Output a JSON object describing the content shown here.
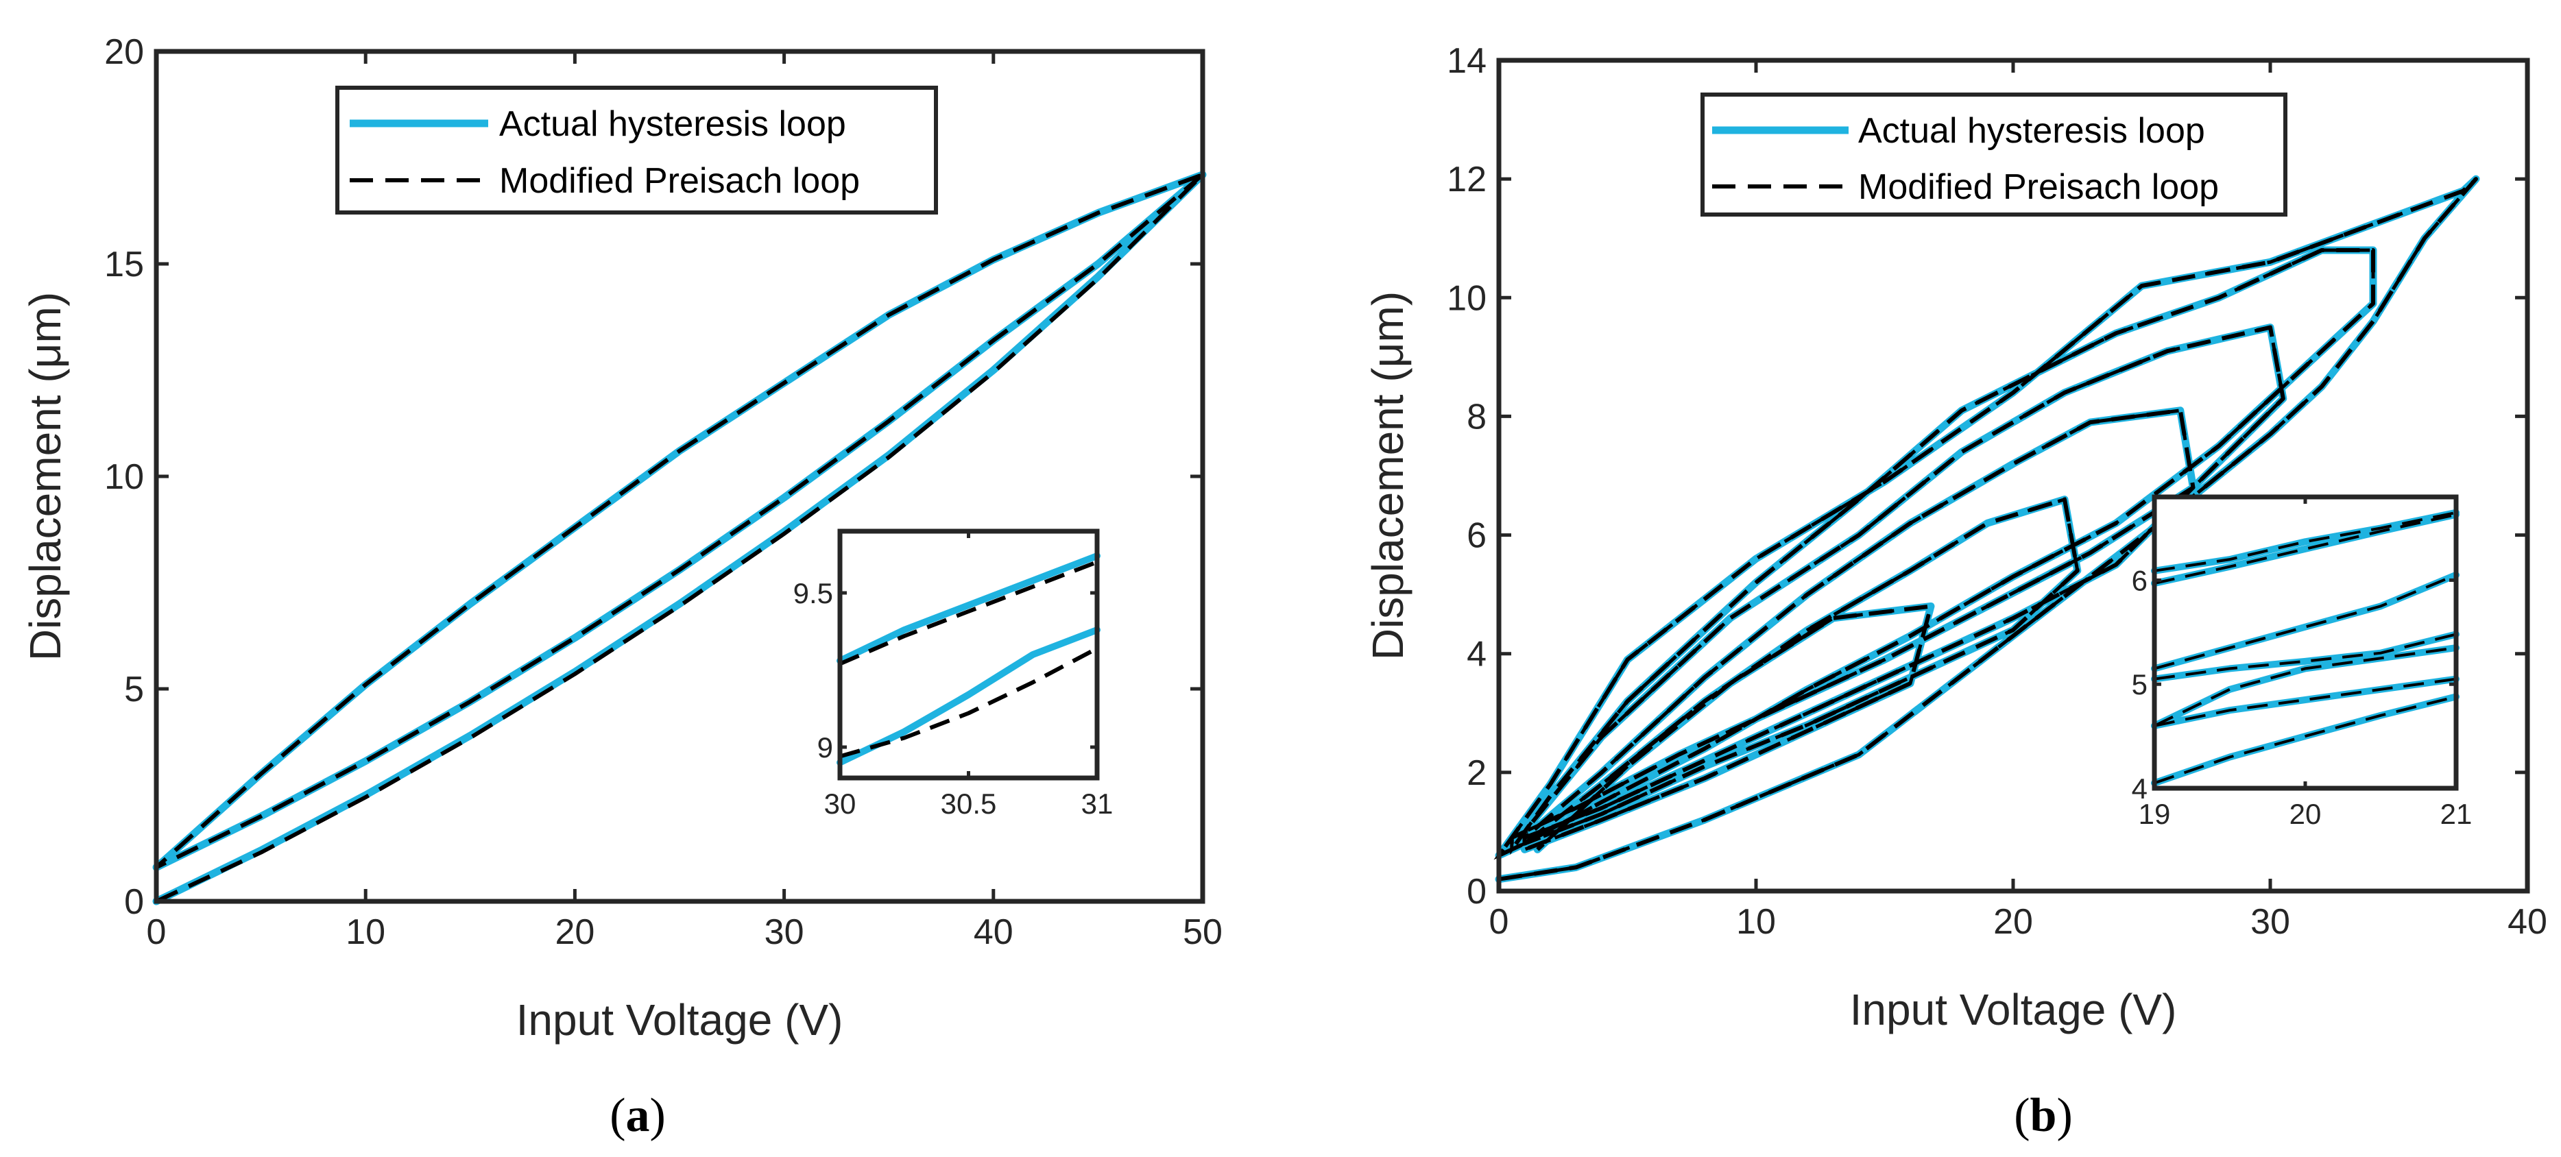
{
  "colors": {
    "actual": "#1fb3e0",
    "model": "#000000",
    "axis": "#262626",
    "frame": "#262626"
  },
  "chart_data": [
    {
      "id": "a",
      "type": "line",
      "caption": {
        "open": "(",
        "letter": "a",
        "close": ")"
      },
      "xlabel": "Input Voltage (V)",
      "ylabel": "Displacement (μm)",
      "xlim": [
        0,
        50
      ],
      "ylim": [
        0,
        20
      ],
      "xticks": [
        0,
        10,
        20,
        30,
        40,
        50
      ],
      "yticks": [
        0,
        5,
        10,
        15,
        20
      ],
      "xtick_labels": [
        "0",
        "10",
        "20",
        "30",
        "40",
        "50"
      ],
      "ytick_labels": [
        "0",
        "5",
        "10",
        "15",
        "20"
      ],
      "legend": {
        "position": "top-center",
        "entries": [
          "Actual hysteresis loop",
          "Modified Preisach loop"
        ]
      },
      "series": [
        {
          "name": "Actual hysteresis loop",
          "style": "solid",
          "x": [
            0,
            5,
            10,
            15,
            20,
            25,
            30,
            35,
            40,
            45,
            50,
            45,
            40,
            35,
            30,
            25,
            20,
            15,
            10,
            5,
            0,
            5,
            10,
            15,
            20,
            25,
            30,
            35,
            40,
            45,
            50
          ],
          "y": [
            0,
            1.2,
            2.5,
            3.9,
            5.4,
            7.0,
            8.7,
            10.5,
            12.5,
            14.7,
            17.1,
            16.2,
            15.1,
            13.8,
            12.2,
            10.6,
            8.8,
            7.0,
            5.1,
            3.0,
            0.8,
            2.0,
            3.3,
            4.7,
            6.2,
            7.8,
            9.5,
            11.3,
            13.2,
            15.0,
            17.1
          ]
        },
        {
          "name": "Modified Preisach loop",
          "style": "dashed",
          "x": [
            0,
            5,
            10,
            15,
            20,
            25,
            30,
            35,
            40,
            45,
            50,
            45,
            40,
            35,
            30,
            25,
            20,
            15,
            10,
            5,
            0,
            5,
            10,
            15,
            20,
            25,
            30,
            35,
            40,
            45,
            50
          ],
          "y": [
            0,
            1.15,
            2.45,
            3.85,
            5.35,
            6.95,
            8.65,
            10.45,
            12.45,
            14.65,
            17.1,
            16.2,
            15.1,
            13.8,
            12.2,
            10.6,
            8.8,
            7.0,
            5.1,
            3.0,
            0.8,
            2.0,
            3.3,
            4.7,
            6.2,
            7.8,
            9.5,
            11.3,
            13.2,
            15.0,
            17.1
          ]
        }
      ],
      "inset": {
        "xlim": [
          30,
          31
        ],
        "ylim": [
          8.9,
          9.7
        ],
        "xticks": [
          30,
          30.5,
          31
        ],
        "yticks": [
          9,
          9.5
        ],
        "xtick_labels": [
          "30",
          "30.5",
          "31"
        ],
        "ytick_labels": [
          "9",
          "9.5"
        ],
        "series": [
          {
            "name": "Actual upper",
            "style": "solid",
            "x": [
              30,
              30.25,
              30.5,
              30.75,
              31
            ],
            "y": [
              9.28,
              9.38,
              9.46,
              9.54,
              9.62
            ]
          },
          {
            "name": "Model upper",
            "style": "dashed",
            "x": [
              30,
              30.25,
              30.5,
              30.75,
              31
            ],
            "y": [
              9.27,
              9.36,
              9.44,
              9.52,
              9.6
            ]
          },
          {
            "name": "Actual lower",
            "style": "solid",
            "x": [
              30,
              30.25,
              30.5,
              30.75,
              31
            ],
            "y": [
              8.95,
              9.05,
              9.17,
              9.3,
              9.38
            ]
          },
          {
            "name": "Model lower",
            "style": "dashed",
            "x": [
              30,
              30.25,
              30.5,
              30.75,
              31
            ],
            "y": [
              8.97,
              9.03,
              9.11,
              9.21,
              9.32
            ]
          }
        ]
      }
    },
    {
      "id": "b",
      "type": "line",
      "caption": {
        "open": "(",
        "letter": "b",
        "close": ")"
      },
      "xlabel": "Input Voltage (V)",
      "ylabel": "Displacement (μm)",
      "xlim": [
        0,
        40
      ],
      "ylim": [
        0,
        14
      ],
      "xticks": [
        0,
        10,
        20,
        30,
        40
      ],
      "yticks": [
        0,
        2,
        4,
        6,
        8,
        10,
        12,
        14
      ],
      "xtick_labels": [
        "0",
        "10",
        "20",
        "30",
        "40"
      ],
      "ytick_labels": [
        "0",
        "2",
        "4",
        "6",
        "8",
        "10",
        "12",
        "14"
      ],
      "legend": {
        "position": "top-center",
        "entries": [
          "Actual hysteresis loop",
          "Modified Preisach loop"
        ]
      },
      "series": [
        {
          "name": "Actual hysteresis loop",
          "style": "solid",
          "x": [
            0,
            3,
            8,
            14,
            20,
            26,
            30,
            32,
            34,
            36,
            38,
            37.5,
            35,
            30,
            25,
            20,
            15,
            10,
            5,
            2,
            0,
            1,
            4,
            8,
            12,
            16,
            20,
            24,
            28,
            30,
            34,
            34,
            32,
            28,
            24,
            18,
            14,
            10,
            5,
            2,
            0.5,
            0.5,
            3,
            7,
            11,
            15,
            19,
            23,
            27,
            30.5,
            30,
            26,
            22,
            18,
            14,
            9,
            4,
            1,
            1,
            4,
            8,
            12,
            16,
            20,
            24,
            27,
            26.5,
            23,
            20,
            16,
            12,
            8,
            4,
            1,
            1,
            4,
            8,
            12,
            16,
            20,
            22.5,
            22,
            19,
            16,
            12,
            8,
            4,
            1,
            1,
            4,
            8,
            12,
            16,
            16.8,
            13,
            9,
            5,
            1.5
          ],
          "y": [
            0.2,
            0.4,
            1.2,
            2.3,
            4.3,
            6.3,
            7.7,
            8.5,
            9.6,
            11.0,
            12.0,
            11.8,
            11.4,
            10.6,
            10.2,
            8.4,
            6.9,
            5.6,
            3.9,
            1.8,
            0.6,
            0.8,
            1.5,
            2.4,
            3.4,
            4.3,
            5.3,
            6.2,
            7.5,
            8.3,
            9.9,
            10.8,
            10.8,
            10.0,
            9.4,
            8.1,
            6.6,
            5.2,
            3.2,
            1.6,
            0.7,
            0.9,
            1.4,
            2.3,
            3.1,
            3.9,
            4.8,
            5.7,
            6.8,
            8.3,
            9.5,
            9.1,
            8.4,
            7.4,
            6.0,
            4.6,
            2.6,
            1.0,
            0.9,
            1.4,
            2.2,
            3.0,
            3.8,
            4.6,
            5.5,
            6.8,
            8.1,
            7.9,
            7.2,
            6.2,
            5.0,
            3.6,
            2.0,
            0.9,
            0.8,
            1.3,
            2.1,
            2.8,
            3.6,
            4.4,
            5.4,
            6.6,
            6.2,
            5.4,
            4.4,
            3.2,
            1.8,
            0.8,
            0.7,
            1.2,
            1.9,
            2.7,
            3.5,
            4.8,
            4.6,
            3.5,
            2.1,
            0.7
          ]
        },
        {
          "name": "Modified Preisach loop",
          "style": "dashed",
          "x": [
            0,
            3,
            8,
            14,
            20,
            26,
            30,
            32,
            34,
            36,
            38,
            37.5,
            35,
            30,
            25,
            20,
            15,
            10,
            5,
            2,
            0,
            1,
            4,
            8,
            12,
            16,
            20,
            24,
            28,
            30,
            34,
            34,
            32,
            28,
            24,
            18,
            14,
            10,
            5,
            2,
            0.5,
            0.5,
            3,
            7,
            11,
            15,
            19,
            23,
            27,
            30.5,
            30,
            26,
            22,
            18,
            14,
            9,
            4,
            1,
            1,
            4,
            8,
            12,
            16,
            20,
            24,
            27,
            26.5,
            23,
            20,
            16,
            12,
            8,
            4,
            1,
            1,
            4,
            8,
            12,
            16,
            20,
            22.5,
            22,
            19,
            16,
            12,
            8,
            4,
            1,
            1,
            4,
            8,
            12,
            16,
            16.8,
            13,
            9,
            5,
            1.5
          ],
          "y": [
            0.2,
            0.4,
            1.2,
            2.3,
            4.3,
            6.3,
            7.7,
            8.5,
            9.6,
            11.0,
            12.0,
            11.8,
            11.4,
            10.6,
            10.2,
            8.4,
            6.9,
            5.6,
            3.9,
            1.8,
            0.6,
            0.8,
            1.5,
            2.4,
            3.4,
            4.3,
            5.3,
            6.2,
            7.5,
            8.3,
            9.9,
            10.8,
            10.8,
            10.0,
            9.4,
            8.1,
            6.6,
            5.2,
            3.2,
            1.6,
            0.7,
            0.9,
            1.4,
            2.3,
            3.1,
            3.9,
            4.8,
            5.7,
            6.8,
            8.3,
            9.5,
            9.1,
            8.4,
            7.4,
            6.0,
            4.6,
            2.6,
            1.0,
            0.9,
            1.4,
            2.2,
            3.0,
            3.8,
            4.6,
            5.5,
            6.8,
            8.1,
            7.9,
            7.2,
            6.2,
            5.0,
            3.6,
            2.0,
            0.9,
            0.8,
            1.3,
            2.1,
            2.8,
            3.6,
            4.4,
            5.4,
            6.6,
            6.2,
            5.4,
            4.4,
            3.2,
            1.8,
            0.8,
            0.7,
            1.2,
            1.9,
            2.7,
            3.5,
            4.8,
            4.6,
            3.5,
            2.1,
            0.7
          ]
        }
      ],
      "inset": {
        "xlim": [
          19,
          21
        ],
        "ylim": [
          4,
          6.8
        ],
        "xticks": [
          19,
          20,
          21
        ],
        "yticks": [
          4,
          5,
          6
        ],
        "xtick_labels": [
          "19",
          "20",
          "21"
        ],
        "ytick_labels": [
          "4",
          "5",
          "6"
        ],
        "series": [
          {
            "name": "c1",
            "style": "solid",
            "x": [
              19,
              19.5,
              20,
              20.5,
              21
            ],
            "y": [
              5.97,
              6.13,
              6.3,
              6.47,
              6.63
            ]
          },
          {
            "name": "c2",
            "style": "solid",
            "x": [
              19,
              19.5,
              20,
              20.5,
              21
            ],
            "y": [
              6.09,
              6.2,
              6.37,
              6.5,
              6.65
            ]
          },
          {
            "name": "c3",
            "style": "solid",
            "x": [
              19,
              19.5,
              20,
              20.5,
              21
            ],
            "y": [
              5.15,
              5.35,
              5.55,
              5.75,
              6.05
            ]
          },
          {
            "name": "c4",
            "style": "solid",
            "x": [
              19,
              19.5,
              20,
              20.5,
              21
            ],
            "y": [
              5.05,
              5.15,
              5.22,
              5.3,
              5.48
            ]
          },
          {
            "name": "c5",
            "style": "solid",
            "x": [
              19,
              19.5,
              20,
              20.5,
              21
            ],
            "y": [
              4.6,
              4.95,
              5.15,
              5.25,
              5.35
            ]
          },
          {
            "name": "c6",
            "style": "solid",
            "x": [
              19,
              19.5,
              20,
              20.5,
              21
            ],
            "y": [
              4.6,
              4.75,
              4.85,
              4.95,
              5.05
            ]
          },
          {
            "name": "c7",
            "style": "solid",
            "x": [
              19,
              19.5,
              20,
              20.5,
              21
            ],
            "y": [
              4.05,
              4.3,
              4.5,
              4.7,
              4.88
            ]
          }
        ]
      }
    }
  ]
}
